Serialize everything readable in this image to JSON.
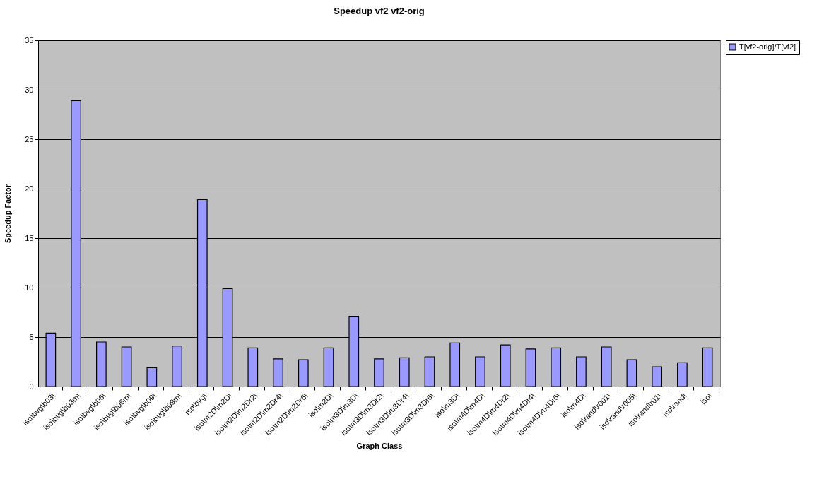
{
  "chart_data": {
    "type": "bar",
    "title": "Speedup vf2 vf2-orig",
    "xlabel": "Graph Class",
    "ylabel": "Speedup Factor",
    "categories": [
      "iso\\bvg\\b03\\",
      "iso\\bvg\\b03m\\",
      "iso\\bvg\\b06\\",
      "iso\\bvg\\b06m\\",
      "iso\\bvg\\b09\\",
      "iso\\bvg\\b09m\\",
      "iso\\bvg\\",
      "iso\\m2D\\m2D\\",
      "iso\\m2D\\m2Dr2\\",
      "iso\\m2D\\m2Dr4\\",
      "iso\\m2D\\m2Dr6\\",
      "iso\\m2D\\",
      "iso\\m3D\\m3D\\",
      "iso\\m3D\\m3Dr2\\",
      "iso\\m3D\\m3Dr4\\",
      "iso\\m3D\\m3Dr6\\",
      "iso\\m3D\\",
      "iso\\m4D\\m4D\\",
      "iso\\m4D\\m4Dr2\\",
      "iso\\m4D\\m4Dr4\\",
      "iso\\m4D\\m4Dr6\\",
      "iso\\m4D\\",
      "iso\\rand\\r001\\",
      "iso\\rand\\r005\\",
      "iso\\rand\\r01\\",
      "iso\\rand\\",
      "iso\\"
    ],
    "series": [
      {
        "name": "T[vf2-orig]/T[vf2]",
        "color": "#9999ff",
        "values": [
          5.4,
          28.9,
          4.5,
          4.0,
          1.9,
          4.1,
          18.9,
          9.9,
          3.9,
          2.8,
          2.7,
          3.9,
          7.1,
          2.8,
          2.9,
          3.0,
          4.4,
          3.0,
          4.2,
          3.8,
          3.9,
          3.0,
          4.0,
          2.7,
          2.0,
          2.4,
          3.9
        ]
      }
    ],
    "ylim": [
      0,
      35
    ],
    "yticks": [
      0,
      5,
      10,
      15,
      20,
      25,
      30,
      35
    ],
    "grid": "y",
    "legend": "right"
  }
}
